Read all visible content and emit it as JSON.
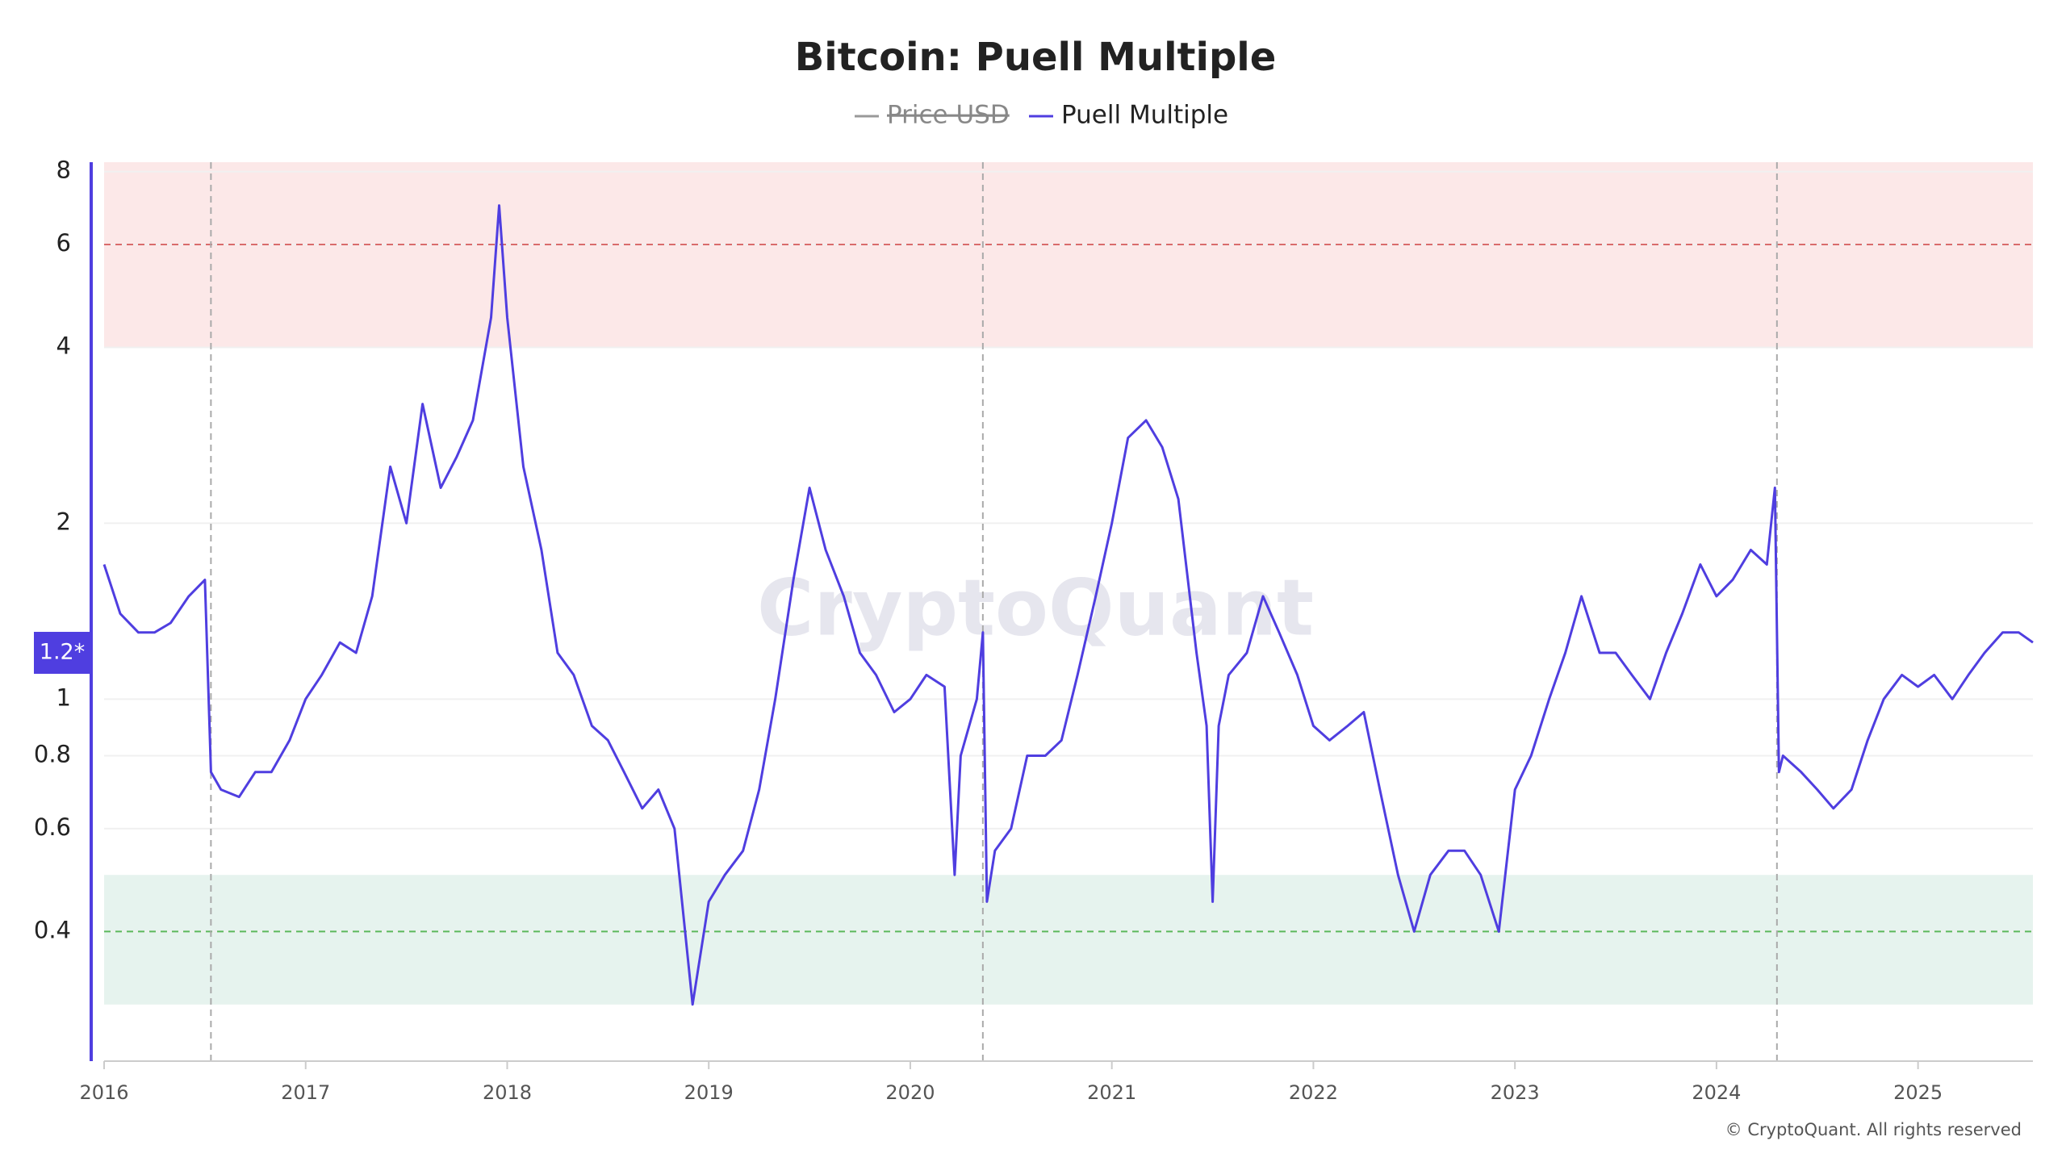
{
  "chart_data": {
    "type": "line",
    "title": "Bitcoin: Puell Multiple",
    "watermark": "CryptoQuant",
    "copyright": "© CryptoQuant. All rights reserved",
    "log_scale": true,
    "grid": true,
    "legend_position": "top",
    "hidden_series": [
      {
        "name": "Price USD",
        "color": "#999999"
      }
    ],
    "x": [
      2016.0,
      2016.08,
      2016.17,
      2016.25,
      2016.33,
      2016.42,
      2016.5,
      2016.53,
      2016.58,
      2016.67,
      2016.75,
      2016.83,
      2016.92,
      2017.0,
      2017.08,
      2017.17,
      2017.25,
      2017.33,
      2017.42,
      2017.5,
      2017.58,
      2017.67,
      2017.75,
      2017.83,
      2017.92,
      2017.96,
      2018.0,
      2018.08,
      2018.17,
      2018.25,
      2018.33,
      2018.42,
      2018.5,
      2018.58,
      2018.67,
      2018.75,
      2018.83,
      2018.92,
      2019.0,
      2019.08,
      2019.17,
      2019.25,
      2019.33,
      2019.42,
      2019.5,
      2019.58,
      2019.67,
      2019.75,
      2019.83,
      2019.92,
      2020.0,
      2020.08,
      2020.17,
      2020.22,
      2020.25,
      2020.33,
      2020.36,
      2020.38,
      2020.42,
      2020.5,
      2020.58,
      2020.67,
      2020.75,
      2020.83,
      2020.92,
      2021.0,
      2021.08,
      2021.17,
      2021.25,
      2021.33,
      2021.42,
      2021.47,
      2021.5,
      2021.53,
      2021.58,
      2021.67,
      2021.75,
      2021.83,
      2021.92,
      2022.0,
      2022.08,
      2022.17,
      2022.25,
      2022.33,
      2022.42,
      2022.5,
      2022.58,
      2022.67,
      2022.75,
      2022.83,
      2022.92,
      2023.0,
      2023.08,
      2023.17,
      2023.25,
      2023.33,
      2023.42,
      2023.5,
      2023.58,
      2023.67,
      2023.75,
      2023.83,
      2023.92,
      2024.0,
      2024.08,
      2024.17,
      2024.25,
      2024.29,
      2024.31,
      2024.33,
      2024.42,
      2024.5,
      2024.58,
      2024.67,
      2024.75,
      2024.83,
      2024.92,
      2025.0,
      2025.08,
      2025.17,
      2025.25,
      2025.33,
      2025.42,
      2025.5,
      2025.57
    ],
    "series": [
      {
        "name": "Puell Multiple",
        "color": "#4f3ee0",
        "values": [
          1.7,
          1.4,
          1.3,
          1.3,
          1.35,
          1.5,
          1.6,
          0.75,
          0.7,
          0.68,
          0.75,
          0.75,
          0.85,
          1.0,
          1.1,
          1.25,
          1.2,
          1.5,
          2.5,
          2.0,
          3.2,
          2.3,
          2.6,
          3.0,
          4.5,
          7.0,
          4.5,
          2.5,
          1.8,
          1.2,
          1.1,
          0.9,
          0.85,
          0.75,
          0.65,
          0.7,
          0.6,
          0.3,
          0.45,
          0.5,
          0.55,
          0.7,
          1.0,
          1.6,
          2.3,
          1.8,
          1.5,
          1.2,
          1.1,
          0.95,
          1.0,
          1.1,
          1.05,
          0.5,
          0.8,
          1.0,
          1.3,
          0.45,
          0.55,
          0.6,
          0.8,
          0.8,
          0.85,
          1.1,
          1.5,
          2.0,
          2.8,
          3.0,
          2.7,
          2.2,
          1.2,
          0.9,
          0.45,
          0.9,
          1.1,
          1.2,
          1.5,
          1.3,
          1.1,
          0.9,
          0.85,
          0.9,
          0.95,
          0.7,
          0.5,
          0.4,
          0.5,
          0.55,
          0.55,
          0.5,
          0.4,
          0.7,
          0.8,
          1.0,
          1.2,
          1.5,
          1.2,
          1.2,
          1.1,
          1.0,
          1.2,
          1.4,
          1.7,
          1.5,
          1.6,
          1.8,
          1.7,
          2.3,
          0.75,
          0.8,
          0.75,
          0.7,
          0.65,
          0.7,
          0.85,
          1.0,
          1.1,
          1.05,
          1.1,
          1.0,
          1.1,
          1.2,
          1.3,
          1.3,
          1.25
        ]
      }
    ],
    "current_value": {
      "value": 1.2,
      "label": "1.2*"
    },
    "xlim": [
      2016,
      2025.57
    ],
    "xticks": [
      2016,
      2017,
      2018,
      2019,
      2020,
      2021,
      2022,
      2023,
      2024,
      2025
    ],
    "ylim": [
      0.24,
      8.3
    ],
    "yticks": [
      0.4,
      0.6,
      0.8,
      1,
      2,
      4,
      6,
      8
    ],
    "bands": [
      {
        "from": 4,
        "to": 8.3,
        "color": "#fce8e8"
      },
      {
        "from": 0.3,
        "to": 0.5,
        "color": "#e6f3ee"
      }
    ],
    "reference_lines": [
      {
        "value": 6,
        "color": "#d96b6b"
      },
      {
        "value": 0.4,
        "color": "#5cb85c"
      }
    ],
    "vertical_lines": [
      2016.53,
      2020.36,
      2024.3
    ]
  }
}
